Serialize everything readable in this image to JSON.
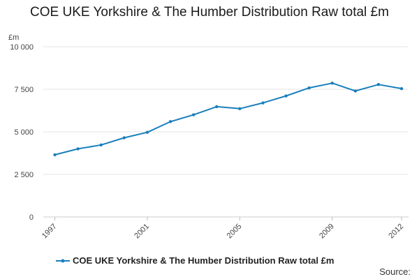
{
  "chart_data": {
    "type": "line",
    "title": "COE UKE Yorkshire & The Humber Distribution Raw total £m",
    "y_unit": "£m",
    "xlabel": "",
    "ylabel": "",
    "x": [
      1997,
      1998,
      1999,
      2000,
      2001,
      2002,
      2003,
      2004,
      2005,
      2006,
      2007,
      2008,
      2009,
      2010,
      2011,
      2012
    ],
    "x_tick_labels": [
      "1997",
      "2001",
      "2005",
      "2009",
      "2012"
    ],
    "y_tick_labels": [
      "0",
      "2 500",
      "5 000",
      "7 500",
      "10 000"
    ],
    "y_ticks": [
      0,
      2500,
      5000,
      7500,
      10000
    ],
    "ylim": [
      0,
      10000
    ],
    "series": [
      {
        "name": "COE UKE Yorkshire & The Humber Distribution Raw total £m",
        "color": "#1a7fbd",
        "values": [
          3650,
          4000,
          4230,
          4650,
          4970,
          5600,
          6000,
          6480,
          6360,
          6700,
          7110,
          7580,
          7860,
          7400,
          7780,
          7540
        ]
      }
    ],
    "grid": true,
    "legend_position": "bottom",
    "source_label": "Source:"
  }
}
